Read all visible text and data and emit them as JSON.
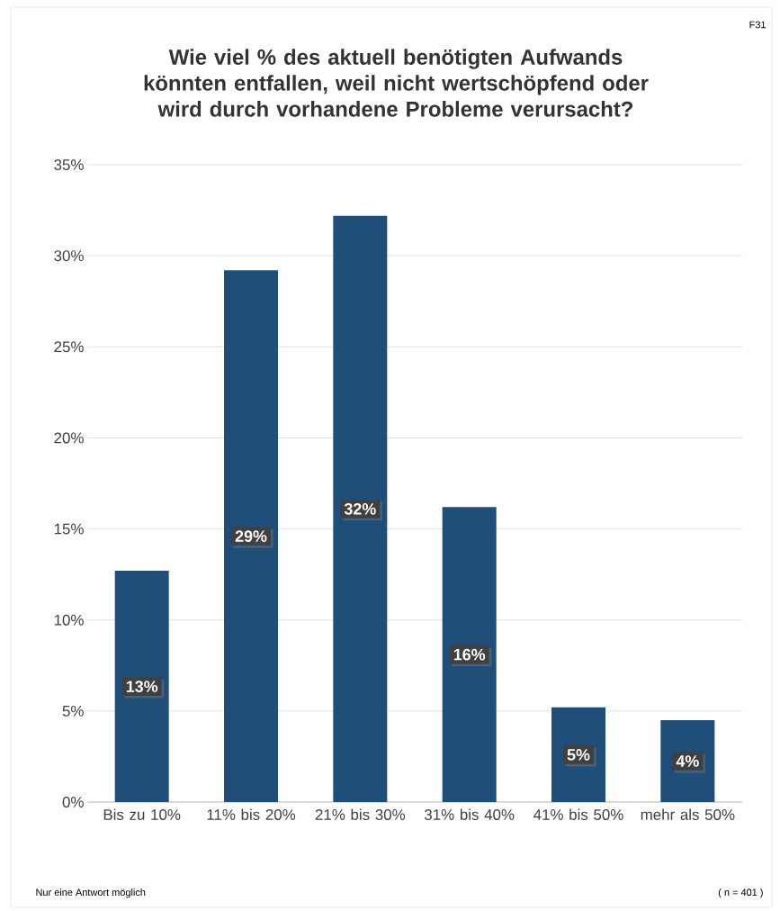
{
  "chart_data": {
    "type": "bar",
    "title": "Wie viel % des aktuell benötigten Aufwands könnten entfallen, weil nicht wertschöpfend oder wird durch vorhandene Probleme verursacht?",
    "categories": [
      "Bis zu 10%",
      "11% bis 20%",
      "21% bis 30%",
      "31% bis 40%",
      "41% bis 50%",
      "mehr als 50%"
    ],
    "values": [
      12.7,
      29.2,
      32.2,
      16.2,
      5.2,
      4.5
    ],
    "value_labels": [
      "13%",
      "29%",
      "32%",
      "16%",
      "5%",
      "4%"
    ],
    "color": "#1f4e79",
    "ylim": [
      0,
      35
    ],
    "yticks": [
      {
        "value": 0,
        "label": "0%"
      },
      {
        "value": 5,
        "label": "5%"
      },
      {
        "value": 10,
        "label": "10%"
      },
      {
        "value": 15,
        "label": "15%"
      },
      {
        "value": 20,
        "label": "20%"
      },
      {
        "value": 25,
        "label": "25%"
      },
      {
        "value": 30,
        "label": "30%"
      },
      {
        "value": 35,
        "label": "35%"
      }
    ],
    "grid": "y",
    "annotations": [
      "F31",
      "Nur eine Antwort möglich",
      "( n = 401 )"
    ]
  }
}
